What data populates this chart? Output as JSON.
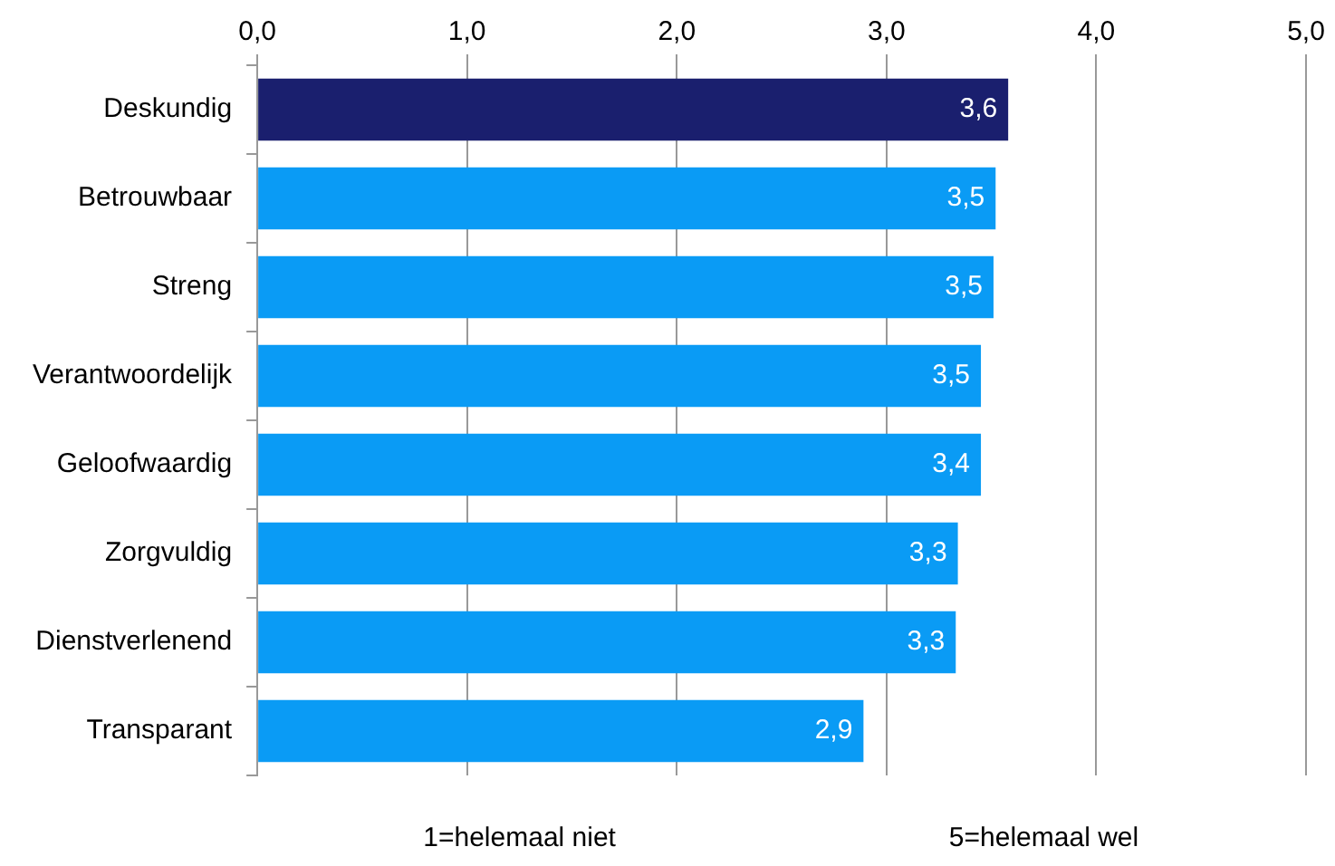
{
  "chart_data": {
    "type": "bar",
    "orientation": "horizontal",
    "categories": [
      "Deskundig",
      "Betrouwbaar",
      "Streng",
      "Verantwoordelijk",
      "Geloofwaardig",
      "Zorgvuldig",
      "Dienstverlenend",
      "Transparant"
    ],
    "values": [
      3.58,
      3.52,
      3.51,
      3.45,
      3.45,
      3.34,
      3.33,
      2.89
    ],
    "value_labels": [
      "3,6",
      "3,5",
      "3,5",
      "3,5",
      "3,4",
      "3,3",
      "3,3",
      "2,9"
    ],
    "colors": [
      "#1a1f6e",
      "#0a9bf5",
      "#0a9bf5",
      "#0a9bf5",
      "#0a9bf5",
      "#0a9bf5",
      "#0a9bf5",
      "#0a9bf5"
    ],
    "xlim": [
      0,
      5
    ],
    "xticks": [
      {
        "value": 0,
        "label": "0,0"
      },
      {
        "value": 1,
        "label": "1,0"
      },
      {
        "value": 2,
        "label": "2,0"
      },
      {
        "value": 3,
        "label": "3,0"
      },
      {
        "value": 4,
        "label": "4,0"
      },
      {
        "value": 5,
        "label": "5,0"
      }
    ],
    "grid": "x",
    "legend": false,
    "annotations": [
      "1=helemaal niet",
      "5=helemaal wel"
    ]
  }
}
